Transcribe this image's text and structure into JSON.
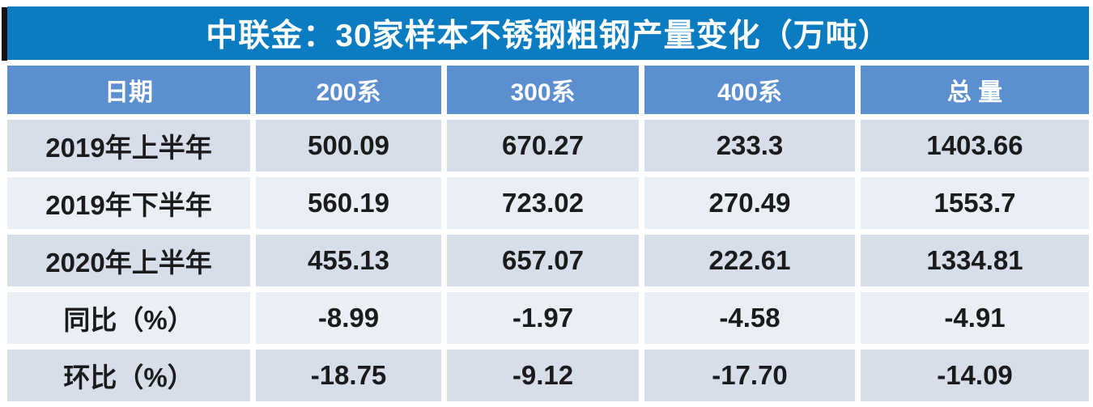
{
  "title": "中联金：30家样本不锈钢粗钢产量变化（万吨）",
  "colors": {
    "title_bg": "#0b7cc1",
    "header_bg": "#5b8fd0",
    "row_odd_bg": "#d6deea",
    "row_even_bg": "#eaeef5",
    "text_dark": "#1b1b1b",
    "text_light": "#ffffff"
  },
  "chart_data": {
    "type": "table",
    "title": "中联金：30家样本不锈钢粗钢产量变化（万吨）",
    "columns": [
      "日期",
      "200系",
      "300系",
      "400系",
      "总 量"
    ],
    "rows": [
      {
        "label": "2019年上半年",
        "values": [
          "500.09",
          "670.27",
          "233.3",
          "1403.66"
        ]
      },
      {
        "label": "2019年下半年",
        "values": [
          "560.19",
          "723.02",
          "270.49",
          "1553.7"
        ]
      },
      {
        "label": "2020年上半年",
        "values": [
          "455.13",
          "657.07",
          "222.61",
          "1334.81"
        ]
      },
      {
        "label": "同比（%）",
        "values": [
          "-8.99",
          "-1.97",
          "-4.58",
          "-4.91"
        ]
      },
      {
        "label": "环比（%）",
        "values": [
          "-18.75",
          "-9.12",
          "-17.70",
          "-14.09"
        ]
      }
    ]
  }
}
